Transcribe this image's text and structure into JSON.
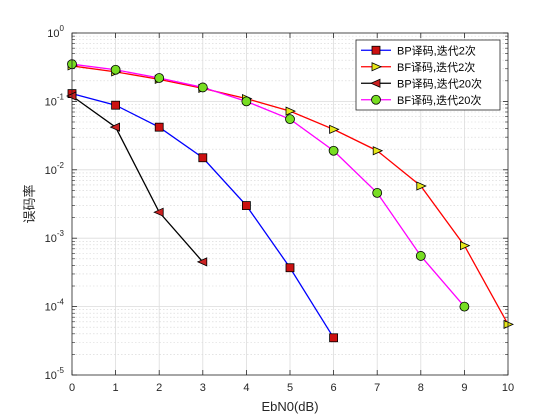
{
  "chart_data": {
    "type": "line",
    "xlabel": "EbN0(dB)",
    "ylabel": "误码率",
    "x_scale": "linear",
    "y_scale": "log",
    "xlim": [
      0,
      10
    ],
    "ylim": [
      1e-05,
      1
    ],
    "x_ticks": [
      0,
      1,
      2,
      3,
      4,
      5,
      6,
      7,
      8,
      9,
      10
    ],
    "y_ticks": [
      {
        "value": 1e-05,
        "base": "10",
        "exp": "-5"
      },
      {
        "value": 0.0001,
        "base": "10",
        "exp": "-4"
      },
      {
        "value": 0.001,
        "base": "10",
        "exp": "-3"
      },
      {
        "value": 0.01,
        "base": "10",
        "exp": "-2"
      },
      {
        "value": 0.1,
        "base": "10",
        "exp": "-1"
      },
      {
        "value": 1,
        "base": "10",
        "exp": "0"
      }
    ],
    "grid": true,
    "minor_grid": true,
    "legend_position": "top-right",
    "series": [
      {
        "name": "BP译码,迭代2次",
        "color": "#0000ff",
        "marker": "square",
        "marker_color": "#cc1111",
        "x": [
          0,
          1,
          2,
          3,
          4,
          5,
          6
        ],
        "y": [
          0.13,
          0.088,
          0.042,
          0.015,
          0.003,
          0.00037,
          3.5e-05
        ]
      },
      {
        "name": "BF译码,迭代2次",
        "color": "#ff0000",
        "marker": "triangle-right",
        "marker_color": "#e6e619",
        "x": [
          0,
          1,
          2,
          3,
          4,
          5,
          6,
          7,
          8,
          9,
          10
        ],
        "y": [
          0.33,
          0.27,
          0.21,
          0.155,
          0.11,
          0.072,
          0.039,
          0.019,
          0.0058,
          0.00078,
          5.5e-05
        ]
      },
      {
        "name": "BP译码,迭代20次",
        "color": "#000000",
        "marker": "triangle-left",
        "marker_color": "#cc2222",
        "x": [
          0,
          1,
          2,
          3
        ],
        "y": [
          0.12,
          0.042,
          0.0024,
          0.00045
        ]
      },
      {
        "name": "BF译码,迭代20次",
        "color": "#ff00ff",
        "marker": "circle",
        "marker_color": "#77dd22",
        "x": [
          0,
          1,
          2,
          3,
          4,
          5,
          6,
          7,
          8,
          9
        ],
        "y": [
          0.35,
          0.29,
          0.22,
          0.16,
          0.1,
          0.055,
          0.019,
          0.0046,
          0.00055,
          0.0001
        ]
      }
    ]
  }
}
